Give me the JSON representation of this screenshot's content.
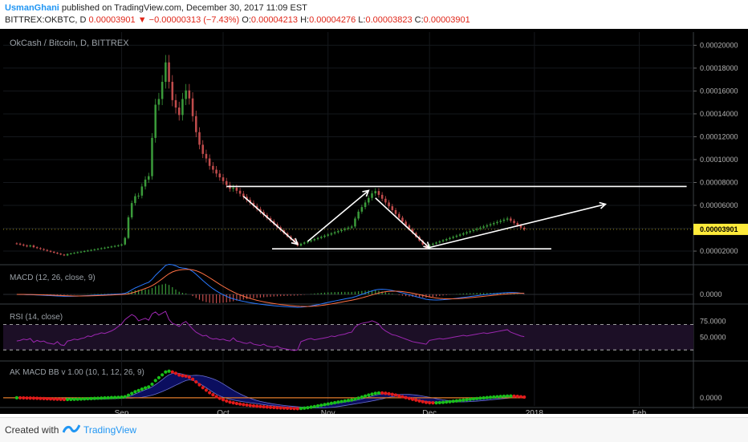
{
  "header": {
    "author": "UsmanGhani",
    "published_text": "published on TradingView.com, December 30, 2017 11:09 EST",
    "symbol": "BITTREX:OKBTC, D",
    "last": "0.00003901",
    "change": "−0.00000313 (−7.43%)",
    "o_label": "O:",
    "o_value": "0.00004213",
    "h_label": "H:",
    "h_value": "0.00004276",
    "l_label": "L:",
    "l_value": "0.00003823",
    "c_label": "C:",
    "c_value": "0.00003901"
  },
  "footer": {
    "created_with": "Created with",
    "brand": "TradingView"
  },
  "colors": {
    "up": "#3a9a3a",
    "down": "#c14c4c",
    "drawing": "#ffffff",
    "price_tag": "#ffeb3b",
    "macd_line": "#2979ff",
    "signal_line": "#ff7043",
    "rsi_line": "#9c27b0",
    "rsi_band": "#1c0f26",
    "bb_fill": "#0d1170",
    "dot_up": "#19c019",
    "dot_down": "#e31a1a"
  },
  "chart_data": [
    {
      "type": "candlestick",
      "title": "OkCash / Bitcoin, D, BITTREX",
      "y_ticks": [
        "0.00020000",
        "0.00018000",
        "0.00016000",
        "0.00014000",
        "0.00012000",
        "0.00010000",
        "0.00008000",
        "0.00006000",
        "0.00004000",
        "0.00002000"
      ],
      "y_tick_values": [
        0.0002,
        0.00018,
        0.00016,
        0.00014,
        0.00012,
        0.0001,
        8e-05,
        6e-05,
        4e-05,
        2e-05
      ],
      "ylim": [
        9.5e-06,
        0.0002115
      ],
      "last_price": "0.00003901",
      "x_labels": [
        "Sep",
        "Oct",
        "Nov",
        "Dec",
        "2018",
        "Feb"
      ],
      "x_label_dates": [
        "2017-09-01",
        "2017-10-01",
        "2017-11-01",
        "2017-12-01",
        "2018-01-01",
        "2018-02-01"
      ],
      "date_range": [
        "2017-08-01",
        "2017-12-30"
      ],
      "axis_range": [
        "2017-07-28",
        "2018-02-17"
      ],
      "close": [
        2.65e-05,
        2.57e-05,
        2.49e-05,
        2.41e-05,
        2.49e-05,
        2.34e-05,
        2.26e-05,
        2.18e-05,
        2.1e-05,
        2.02e-05,
        1.94e-05,
        1.86e-05,
        1.78e-05,
        1.7e-05,
        1.62e-05,
        1.75e-05,
        1.8e-05,
        1.85e-05,
        1.9e-05,
        1.95e-05,
        2e-05,
        2.05e-05,
        2.1e-05,
        2.15e-05,
        2.2e-05,
        2.25e-05,
        2.3e-05,
        2.35e-05,
        2.4e-05,
        2.45e-05,
        2.5e-05,
        2.58e-05,
        3.15e-05,
        4.95e-05,
        6.2e-05,
        6.8e-05,
        6.85e-05,
        7.65e-05,
        8.25e-05,
        8.55e-05,
        0.000119,
        0.000148,
        0.000153,
        0.000168,
        0.000185,
        0.000168,
        0.000152,
        0.0001455,
        0.000139,
        0.000153,
        0.0001605,
        0.0001535,
        0.000138,
        0.000124,
        0.000113,
        0.000105,
        0.000101,
        9.45e-05,
        9.12e-05,
        8.78e-05,
        8.45e-05,
        8.12e-05,
        7.78e-05,
        7.45e-05,
        7.55e-05,
        7.28e-05,
        7.02e-05,
        6.75e-05,
        6.48e-05,
        6.22e-05,
        5.95e-05,
        5.68e-05,
        5.42e-05,
        5.15e-05,
        4.88e-05,
        4.62e-05,
        4.35e-05,
        4.08e-05,
        3.82e-05,
        3.55e-05,
        3.28e-05,
        3.02e-05,
        2.75e-05,
        2.48e-05,
        2.65e-05,
        2.75e-05,
        2.85e-05,
        2.95e-05,
        3.05e-05,
        3.15e-05,
        3.25e-05,
        3.35e-05,
        3.45e-05,
        3.55e-05,
        3.65e-05,
        3.75e-05,
        3.85e-05,
        3.95e-05,
        4.05e-05,
        4.15e-05,
        4.85e-05,
        5.45e-05,
        5.85e-05,
        6.25e-05,
        6.65e-05,
        7.05e-05,
        7.25e-05,
        6.92e-05,
        6.58e-05,
        6.25e-05,
        5.92e-05,
        5.58e-05,
        5.25e-05,
        4.92e-05,
        4.58e-05,
        4.25e-05,
        3.92e-05,
        3.58e-05,
        3.25e-05,
        2.92e-05,
        2.58e-05,
        2.25e-05,
        2.55e-05,
        2.65e-05,
        2.75e-05,
        2.85e-05,
        2.95e-05,
        3.05e-05,
        3.15e-05,
        3.25e-05,
        3.35e-05,
        3.45e-05,
        3.55e-05,
        3.65e-05,
        3.75e-05,
        3.85e-05,
        3.95e-05,
        4.05e-05,
        4.15e-05,
        4.25e-05,
        4.35e-05,
        4.45e-05,
        4.55e-05,
        4.65e-05,
        4.75e-05,
        4.85e-05,
        4.65e-05,
        4.45e-05,
        4.25e-05,
        4.05e-05,
        3.9e-05
      ]
    },
    {
      "type": "line",
      "title": "MACD (12, 26, close, 9)",
      "y_ticks": [
        "0.0000"
      ],
      "ylim": [
        -1e-05,
        3.5e-05
      ]
    },
    {
      "type": "line",
      "title": "RSI (14, close)",
      "y_ticks": [
        "75.0000",
        "50.0000"
      ],
      "ylim": [
        15,
        100
      ],
      "bands": [
        70,
        30
      ],
      "values": [
        44,
        45,
        47,
        46,
        48,
        42,
        45,
        43,
        44,
        41,
        40,
        39,
        43,
        38,
        37,
        44,
        45,
        47,
        46,
        48,
        49,
        52,
        51,
        54,
        55,
        57,
        56,
        58,
        60,
        63,
        67,
        71,
        78,
        82,
        86,
        83,
        76,
        78,
        80,
        77,
        87,
        90,
        85,
        88,
        91,
        78,
        72,
        70,
        67,
        72,
        75,
        69,
        63,
        58,
        55,
        52,
        53,
        49,
        47,
        48,
        46,
        47,
        45,
        44,
        49,
        44,
        43,
        41,
        40,
        42,
        39,
        38,
        37,
        39,
        36,
        35,
        34,
        36,
        33,
        32,
        31,
        30,
        29,
        30,
        43,
        45,
        47,
        48,
        46,
        47,
        48,
        49,
        50,
        52,
        51,
        53,
        54,
        55,
        57,
        58,
        66,
        70,
        72,
        73,
        74,
        76,
        74,
        71,
        64,
        60,
        57,
        54,
        53,
        51,
        49,
        47,
        45,
        43,
        42,
        41,
        40,
        39,
        45,
        46,
        47,
        48,
        47,
        48,
        49,
        50,
        51,
        52,
        53,
        52,
        53,
        54,
        55,
        56,
        57,
        56,
        57,
        58,
        59,
        60,
        61,
        62,
        58,
        56,
        54,
        52,
        51
      ]
    },
    {
      "type": "line",
      "title": "AK MACD BB v 1.00 (10, 1, 12, 26, 9)",
      "y_ticks": [
        "0.0000"
      ],
      "ylim": [
        -1.2e-05,
        5.2e-05
      ]
    }
  ]
}
